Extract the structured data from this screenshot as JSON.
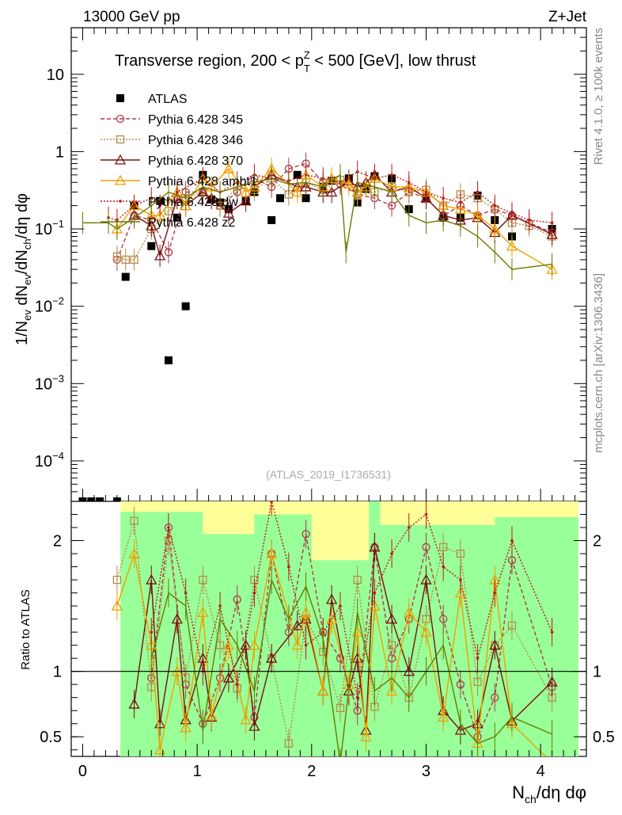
{
  "header": {
    "left": "13000 GeV pp",
    "right": "Z+Jet"
  },
  "side_labels": {
    "rivet": "Rivet 4.1.0, ≥ 100k events",
    "mcplots": "mcplots.cern.ch [arXiv:1306.3436]"
  },
  "colors": {
    "atlas": "#000000",
    "p345": "#b03a48",
    "p346": "#b58d45",
    "p370": "#7a1010",
    "ambt1": "#f0a000",
    "dw": "#c01818",
    "z2": "#6b7a00",
    "band_green": "#99ff99",
    "band_yellow": "#ffff99"
  },
  "chart_data": [
    {
      "type": "scatter",
      "panel": "main",
      "title": "Transverse region, 200 < p_T^Z < 500 [GeV], low thrust",
      "title_parts": {
        "a": "Transverse region, 200 < p",
        "sup": "Z",
        "sub": "T",
        "b": " < 500 [GeV], low thrust"
      },
      "ylabel": "1/N_ev dN_ev/dN_ch/dη dφ",
      "ylabel_parts": {
        "a": "1/N",
        "s1": "ev",
        "b": " dN",
        "s2": "ev",
        "c": "/dN",
        "s3": "ch",
        "d": "/dη dφ"
      },
      "yscale": "log",
      "ylim": [
        3e-05,
        40
      ],
      "xlim": [
        -0.1,
        4.4
      ],
      "yticks": [
        {
          "v": 10,
          "m": "10",
          "e": ""
        },
        {
          "v": 1,
          "m": "1",
          "e": ""
        },
        {
          "v": 0.1,
          "m": "10",
          "e": "−1"
        },
        {
          "v": 0.01,
          "m": "10",
          "e": "−2"
        },
        {
          "v": 0.001,
          "m": "10",
          "e": "−3"
        },
        {
          "v": 0.0001,
          "m": "10",
          "e": "−4"
        }
      ],
      "watermark": "(ATLAS_2019_I1736531)",
      "legend_position": "top-left",
      "series": [
        {
          "name": "ATLAS",
          "key": "atlas",
          "style": "square",
          "x": [
            0.0,
            0.075,
            0.15,
            0.3,
            0.375,
            0.45,
            0.6,
            0.675,
            0.75,
            0.825,
            0.9,
            1.05,
            1.125,
            1.2,
            1.275,
            1.425,
            1.5,
            1.65,
            1.725,
            1.875,
            1.95,
            2.1,
            2.175,
            2.325,
            2.4,
            2.475,
            2.55,
            2.7,
            2.85,
            3.0,
            3.15,
            3.3,
            3.45,
            3.6,
            3.75,
            4.1
          ],
          "y": [
            3e-05,
            3e-05,
            3e-05,
            3e-05,
            0.024,
            0.2,
            0.06,
            0.23,
            0.002,
            0.14,
            0.01,
            0.5,
            0.24,
            0.22,
            0.18,
            0.23,
            0.3,
            0.13,
            0.25,
            0.5,
            0.25,
            0.35,
            0.42,
            0.45,
            0.22,
            0.33,
            0.48,
            0.45,
            0.18,
            0.25,
            0.14,
            0.14,
            0.27,
            0.13,
            0.08,
            0.1
          ]
        },
        {
          "name": "Pythia 6.428 345",
          "key": "p345",
          "style": "circle-dashed",
          "x": [
            0.3,
            0.45,
            0.6,
            0.75,
            0.9,
            1.05,
            1.2,
            1.35,
            1.5,
            1.65,
            1.8,
            1.95,
            2.1,
            2.25,
            2.4,
            2.55,
            2.7,
            2.85,
            3.0,
            3.15,
            3.3,
            3.45,
            3.6,
            3.75,
            3.9,
            4.1
          ],
          "y": [
            0.04,
            0.15,
            0.13,
            0.05,
            0.3,
            0.3,
            0.2,
            0.3,
            0.45,
            0.35,
            0.6,
            0.7,
            0.4,
            0.38,
            0.28,
            0.25,
            0.2,
            0.3,
            0.25,
            0.15,
            0.2,
            0.15,
            0.18,
            0.15,
            0.12,
            0.09
          ]
        },
        {
          "name": "Pythia 6.428 346",
          "key": "p346",
          "style": "square-open-dotted",
          "x": [
            0.3,
            0.375,
            0.45,
            0.6,
            0.75,
            0.9,
            1.05,
            1.2,
            1.35,
            1.5,
            1.65,
            1.8,
            1.95,
            2.1,
            2.25,
            2.4,
            2.55,
            2.7,
            2.85,
            3.0,
            3.15,
            3.3,
            3.45,
            3.6,
            3.75,
            3.9,
            4.1
          ],
          "y": [
            0.044,
            0.04,
            0.04,
            0.1,
            0.17,
            0.25,
            0.3,
            0.2,
            0.35,
            0.32,
            0.45,
            0.28,
            0.4,
            0.32,
            0.43,
            0.27,
            0.3,
            0.35,
            0.3,
            0.32,
            0.2,
            0.28,
            0.25,
            0.18,
            0.12,
            0.11,
            0.08
          ]
        },
        {
          "name": "Pythia 6.428 370",
          "key": "p370",
          "style": "triangle-solid",
          "x": [
            0.45,
            0.6,
            0.675,
            0.825,
            0.9,
            1.05,
            1.125,
            1.275,
            1.425,
            1.5,
            1.65,
            1.875,
            1.95,
            2.1,
            2.175,
            2.325,
            2.4,
            2.475,
            2.55,
            2.7,
            2.85,
            3.0,
            3.15,
            3.3,
            3.45,
            3.6,
            3.75,
            4.1
          ],
          "y": [
            0.15,
            0.11,
            0.045,
            0.25,
            0.2,
            0.3,
            0.25,
            0.16,
            0.23,
            0.35,
            0.5,
            0.35,
            0.35,
            0.3,
            0.3,
            0.42,
            0.35,
            0.4,
            0.5,
            0.3,
            0.35,
            0.25,
            0.15,
            0.13,
            0.14,
            0.09,
            0.15,
            0.085
          ]
        },
        {
          "name": "Pythia 6.428 ambt1",
          "key": "ambt1",
          "style": "triangle-solid",
          "x": [
            0.3,
            0.45,
            0.6,
            0.675,
            0.825,
            0.9,
            1.05,
            1.125,
            1.275,
            1.425,
            1.5,
            1.65,
            1.875,
            1.95,
            2.1,
            2.175,
            2.325,
            2.4,
            2.475,
            2.55,
            2.7,
            2.85,
            3.0,
            3.15,
            3.3,
            3.45,
            3.6,
            3.75,
            4.1
          ],
          "y": [
            0.1,
            0.2,
            0.15,
            0.15,
            0.3,
            0.2,
            0.45,
            0.35,
            0.6,
            0.3,
            0.35,
            0.6,
            0.3,
            0.5,
            0.35,
            0.45,
            0.38,
            0.3,
            0.35,
            0.45,
            0.35,
            0.35,
            0.3,
            0.2,
            0.18,
            0.15,
            0.1,
            0.06,
            0.03
          ]
        },
        {
          "name": "Pythia 6.428 dw",
          "key": "dw",
          "style": "dot-dotted",
          "x": [
            0.225,
            0.3,
            0.45,
            0.6,
            0.675,
            0.825,
            1.05,
            1.2,
            1.35,
            1.5,
            1.65,
            1.8,
            1.95,
            2.1,
            2.25,
            2.4,
            2.55,
            2.7,
            2.85,
            3.0,
            3.15,
            3.3,
            3.45,
            3.6,
            3.75,
            3.9,
            4.1
          ],
          "y": [
            0.14,
            0.13,
            0.2,
            0.25,
            0.2,
            0.3,
            0.45,
            0.3,
            0.4,
            0.5,
            0.45,
            0.42,
            0.5,
            0.45,
            0.4,
            0.55,
            0.45,
            0.5,
            0.4,
            0.3,
            0.25,
            0.22,
            0.3,
            0.2,
            0.16,
            0.13,
            0.12
          ]
        },
        {
          "name": "Pythia 6.428 z2",
          "key": "z2",
          "style": "line",
          "x": [
            0.0,
            0.225,
            0.3,
            0.45,
            0.6,
            0.75,
            0.9,
            1.05,
            1.2,
            1.35,
            1.5,
            1.65,
            1.8,
            1.95,
            2.1,
            2.25,
            2.3,
            2.4,
            2.55,
            2.7,
            2.85,
            3.0,
            3.15,
            3.3,
            3.45,
            3.6,
            3.75,
            4.1
          ],
          "y": [
            0.12,
            0.12,
            0.1,
            0.14,
            0.2,
            0.3,
            0.25,
            0.35,
            0.3,
            0.35,
            0.4,
            0.45,
            0.38,
            0.4,
            0.35,
            0.5,
            0.05,
            0.4,
            0.35,
            0.3,
            0.15,
            0.12,
            0.13,
            0.11,
            0.08,
            0.05,
            0.03,
            0.035
          ]
        }
      ]
    },
    {
      "type": "line",
      "panel": "ratio",
      "ylabel": "Ratio to ATLAS",
      "xlabel": "N_ch/dη dφ",
      "xlabel_parts": {
        "a": "N",
        "sub": "ch",
        "b": "/dη dφ"
      },
      "ylim": [
        0.35,
        2.3
      ],
      "xlim": [
        -0.1,
        4.4
      ],
      "yticks": [
        2,
        1,
        0.5
      ],
      "ytick_labels": [
        "2",
        "1",
        "0.5"
      ],
      "xticks": [
        0,
        1,
        2,
        3,
        4
      ],
      "xtick_labels": [
        "0",
        "1",
        "2",
        "3",
        "4"
      ],
      "reference_line": 1,
      "bands": {
        "yellow": [
          [
            0.33,
            4.33,
            0.35,
            2.3
          ]
        ],
        "green": [
          [
            0.33,
            1.05,
            0.35,
            2.22
          ],
          [
            1.05,
            1.5,
            0.35,
            2.05
          ],
          [
            1.5,
            2.0,
            0.35,
            2.2
          ],
          [
            2.0,
            2.5,
            0.35,
            1.85
          ],
          [
            2.5,
            2.6,
            0.35,
            2.3
          ],
          [
            2.6,
            3.6,
            0.35,
            2.12
          ],
          [
            3.6,
            4.33,
            0.35,
            2.18
          ]
        ]
      },
      "series": [
        {
          "key": "p345",
          "name": "Pythia 6.428 345",
          "x": [
            0.6,
            0.75,
            0.9,
            1.05,
            1.2,
            1.35,
            1.5,
            1.65,
            1.8,
            1.95,
            2.1,
            2.25,
            2.4,
            2.55,
            2.7,
            2.85,
            3.0,
            3.15,
            3.3,
            3.45,
            3.6,
            3.75,
            4.1
          ],
          "y": [
            0.95,
            2.1,
            0.9,
            0.6,
            0.95,
            1.55,
            0.65,
            1.9,
            1.3,
            2.05,
            1.3,
            1.1,
            0.7,
            1.95,
            1.1,
            1.4,
            1.95,
            1.4,
            0.9,
            0.5,
            0.8,
            1.85,
            0.88
          ]
        },
        {
          "key": "p346",
          "name": "Pythia 6.428 346",
          "x": [
            0.3,
            0.45,
            0.6,
            0.75,
            0.9,
            1.05,
            1.2,
            1.35,
            1.5,
            1.65,
            1.8,
            1.95,
            2.1,
            2.25,
            2.4,
            2.55,
            2.7,
            2.85,
            3.0,
            3.15,
            3.3,
            3.45,
            3.6,
            3.75,
            4.1
          ],
          "y": [
            1.7,
            2.15,
            0.88,
            2.0,
            0.95,
            1.7,
            1.2,
            0.87,
            1.7,
            1.1,
            0.45,
            1.4,
            1.15,
            0.72,
            1.7,
            0.73,
            1.2,
            0.8,
            1.4,
            1.95,
            1.9,
            0.92,
            1.2,
            1.35,
            0.8
          ]
        },
        {
          "key": "p370",
          "name": "Pythia 6.428 370",
          "x": [
            0.45,
            0.6,
            0.675,
            0.825,
            0.9,
            1.05,
            1.125,
            1.275,
            1.425,
            1.5,
            1.65,
            1.875,
            1.95,
            2.1,
            2.175,
            2.325,
            2.4,
            2.475,
            2.55,
            2.7,
            2.85,
            3.0,
            3.15,
            3.3,
            3.45,
            3.6,
            3.75,
            4.1
          ],
          "y": [
            0.75,
            1.7,
            0.6,
            1.4,
            0.63,
            1.1,
            0.65,
            0.95,
            1.2,
            0.58,
            1.1,
            1.35,
            1.4,
            0.85,
            1.55,
            0.85,
            1.1,
            0.55,
            1.95,
            1.4,
            1.0,
            1.7,
            0.7,
            0.55,
            0.6,
            1.2,
            0.62,
            0.92
          ]
        },
        {
          "key": "ambt1",
          "name": "Pythia 6.428 ambt1",
          "x": [
            0.3,
            0.45,
            0.6,
            0.675,
            0.825,
            0.9,
            1.05,
            1.125,
            1.275,
            1.425,
            1.5,
            1.65,
            1.875,
            1.95,
            2.1,
            2.175,
            2.325,
            2.4,
            2.475,
            2.55,
            2.7,
            2.85,
            3.0,
            3.15,
            3.3,
            3.45,
            3.6,
            3.75,
            4.1
          ],
          "y": [
            1.5,
            1.9,
            1.2,
            0.4,
            1.0,
            0.57,
            1.45,
            0.66,
            1.2,
            0.63,
            1.2,
            1.9,
            1.2,
            1.45,
            0.85,
            1.4,
            0.9,
            1.3,
            0.5,
            1.5,
            0.85,
            1.45,
            1.3,
            0.65,
            1.6,
            0.45,
            1.7,
            0.6,
            0.3
          ]
        },
        {
          "key": "dw",
          "name": "Pythia 6.428 dw",
          "x": [
            0.6,
            0.75,
            0.9,
            1.05,
            1.2,
            1.35,
            1.5,
            1.65,
            1.8,
            1.95,
            2.1,
            2.25,
            2.4,
            2.55,
            2.7,
            2.85,
            3.0,
            3.15,
            3.3,
            3.45,
            3.6,
            3.75,
            4.1
          ],
          "y": [
            1.3,
            2.1,
            1.6,
            1.0,
            1.5,
            0.9,
            1.6,
            2.3,
            1.8,
            1.2,
            1.3,
            1.5,
            0.8,
            1.6,
            1.9,
            2.1,
            2.2,
            1.8,
            1.7,
            1.1,
            1.6,
            2.0,
            1.3
          ]
        },
        {
          "key": "z2",
          "name": "Pythia 6.428 z2",
          "x": [
            0.6,
            0.75,
            0.9,
            1.05,
            1.2,
            1.35,
            1.5,
            1.65,
            1.8,
            1.95,
            2.1,
            2.25,
            2.4,
            2.55,
            2.7,
            2.85,
            3.0,
            3.15,
            3.3,
            3.45,
            3.6,
            3.75,
            4.1
          ],
          "y": [
            1.1,
            1.6,
            1.5,
            0.55,
            1.4,
            1.2,
            0.85,
            1.7,
            1.4,
            1.65,
            1.25,
            0.3,
            1.45,
            0.85,
            0.95,
            0.8,
            1.0,
            1.2,
            0.6,
            0.45,
            0.5,
            0.65,
            0.52
          ]
        }
      ]
    }
  ]
}
